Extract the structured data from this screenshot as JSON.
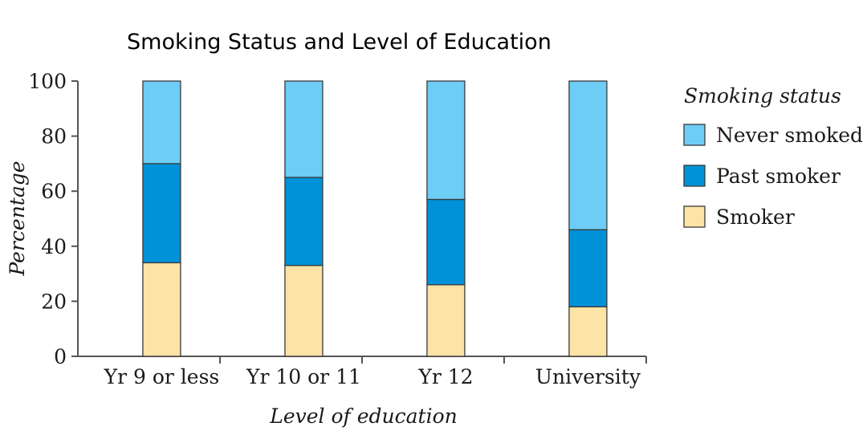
{
  "chart_data": {
    "type": "bar",
    "stacked": true,
    "title": "Smoking Status and Level of Education",
    "xlabel": "Level of education",
    "ylabel": "Percentage",
    "ylim": [
      0,
      100
    ],
    "yticks": [
      0,
      20,
      40,
      60,
      80,
      100
    ],
    "categories": [
      "Yr 9 or less",
      "Yr 10 or 11",
      "Yr 12",
      "University"
    ],
    "series": [
      {
        "name": "Smoker",
        "color": "#fde3a6",
        "values": [
          34,
          33,
          26,
          18
        ]
      },
      {
        "name": "Past smoker",
        "color": "#0092d8",
        "values": [
          36,
          32,
          31,
          28
        ]
      },
      {
        "name": "Never smoked",
        "color": "#6dcdf5",
        "values": [
          30,
          35,
          43,
          54
        ]
      }
    ],
    "legend": {
      "title": "Smoking status",
      "placement": "right",
      "order": [
        "Never smoked",
        "Past smoker",
        "Smoker"
      ]
    },
    "grid": false
  }
}
